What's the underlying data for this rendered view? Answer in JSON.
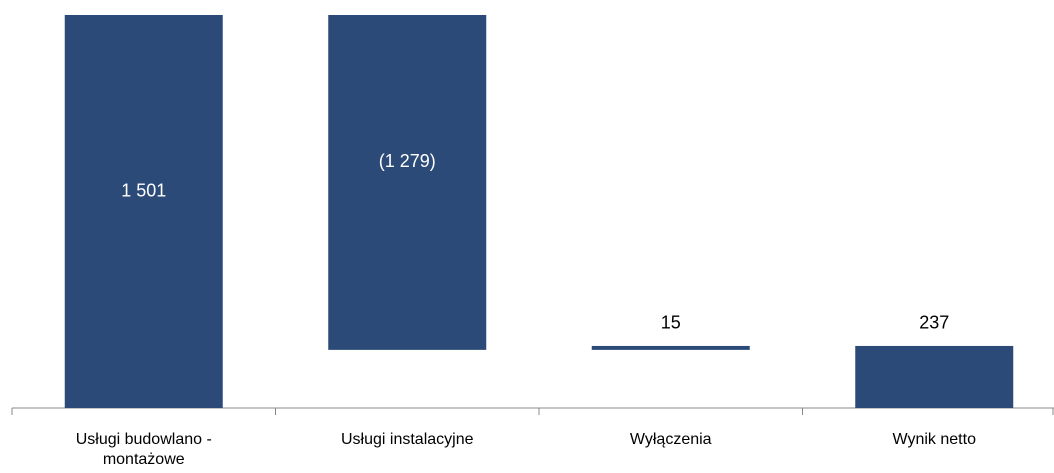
{
  "chart_data": {
    "type": "waterfall",
    "categories": [
      "Usługi budowlano - montażowe",
      "Usługi instalacyjne",
      "Wyłączenia",
      "Wynik netto"
    ],
    "values": [
      1501,
      -1279,
      15,
      237
    ],
    "value_labels": [
      "1 501",
      "(1 279)",
      "15",
      "237"
    ],
    "color": "#2c4a78"
  }
}
